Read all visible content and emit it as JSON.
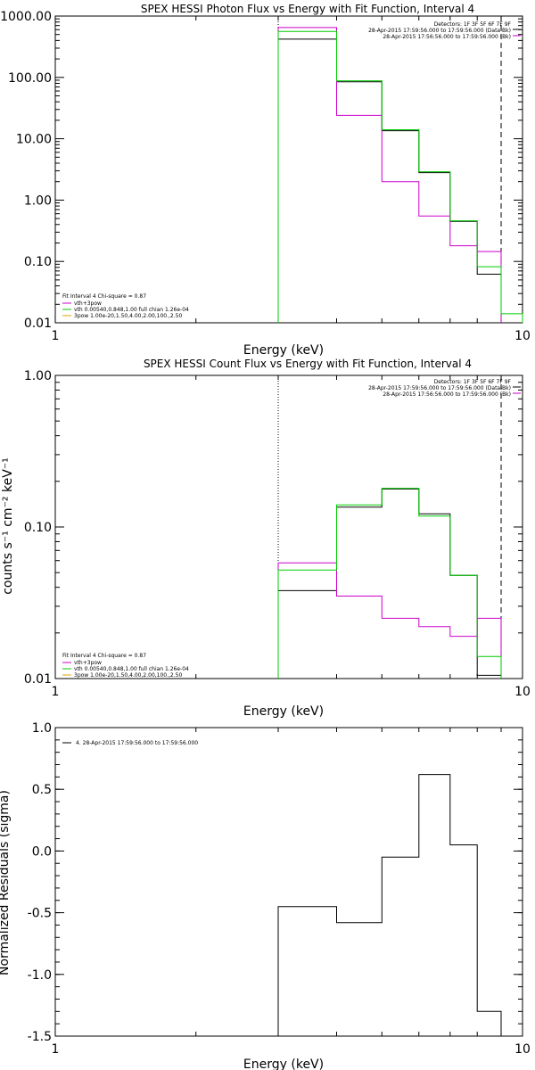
{
  "colors": {
    "black": "#000000",
    "magenta": "#cc00cc",
    "green": "#00cc00",
    "orange": "#e0a000"
  },
  "chart_data": [
    {
      "type": "line",
      "step": true,
      "title": "SPEX HESSI Photon Flux vs Energy with Fit Function, Interval 4",
      "xlabel": "Energy (keV)",
      "ylabel": "",
      "xscale": "log",
      "yscale": "log",
      "xlim": [
        1,
        10
      ],
      "ylim": [
        0.01,
        1000
      ],
      "xticks": [
        {
          "v": 1,
          "label": "1"
        },
        {
          "v": 10,
          "label": "10"
        }
      ],
      "yticks": [
        {
          "v": 0.01,
          "label": "0.01"
        },
        {
          "v": 0.1,
          "label": "0.10"
        },
        {
          "v": 1,
          "label": "1.00"
        },
        {
          "v": 10,
          "label": "10.00"
        },
        {
          "v": 100,
          "label": "100.00"
        },
        {
          "v": 1000,
          "label": "1000.00"
        }
      ],
      "vlines": [
        {
          "x": 3.0,
          "style": "dotted"
        },
        {
          "x": 9.0,
          "style": "dashed"
        }
      ],
      "edges": [
        3.0,
        4.0,
        5.0,
        6.0,
        7.0,
        8.0,
        9.0,
        10.0
      ],
      "series": [
        {
          "color": "#000000",
          "values": [
            420,
            85,
            13.5,
            2.8,
            0.45,
            0.062
          ]
        },
        {
          "color": "#cc00cc",
          "values": [
            650,
            24,
            2.0,
            0.55,
            0.18,
            0.145
          ]
        },
        {
          "color": "#00cc00",
          "values": [
            560,
            88,
            14,
            2.9,
            0.46,
            0.082,
            0.014
          ]
        }
      ],
      "info": {
        "lines": [
          {
            "text": "Detectors: 1F 3F 5F 6F 7F 9F",
            "color": "#000000"
          },
          {
            "text": "28-Apr-2015 17:59:56.000 to 17:59:56.000 (Data-Bk)",
            "color": "#000000"
          },
          {
            "text": "28-Apr-2015 17:56:56.000 to 17:59:56.000 (Bk)",
            "color": "#cc00cc"
          }
        ]
      },
      "legend": {
        "header": "Fit Interval 4   Chi-square = 0.87",
        "entries": [
          {
            "text": "vth+3pow",
            "color": "#cc00cc"
          },
          {
            "text": "vth 0.00540,0.848,1.00  full chian 1.26e-04",
            "color": "#00cc00"
          },
          {
            "text": "3pow 1.00e-20,1.50,4.00,2.00,100.,2.50",
            "color": "#e0a000"
          }
        ]
      }
    },
    {
      "type": "line",
      "step": true,
      "title": "SPEX HESSI Count Flux vs Energy with Fit Function, Interval 4",
      "xlabel": "Energy (keV)",
      "ylabel": "counts s⁻¹ cm⁻² keV⁻¹",
      "xscale": "log",
      "yscale": "log",
      "xlim": [
        1,
        10
      ],
      "ylim": [
        0.01,
        1.0
      ],
      "xticks": [
        {
          "v": 1,
          "label": "1"
        },
        {
          "v": 10,
          "label": "10"
        }
      ],
      "yticks": [
        {
          "v": 0.01,
          "label": "0.01"
        },
        {
          "v": 0.1,
          "label": "0.10"
        },
        {
          "v": 1,
          "label": "1.00"
        }
      ],
      "vlines": [
        {
          "x": 3.0,
          "style": "dotted"
        },
        {
          "x": 9.0,
          "style": "dashed"
        }
      ],
      "edges": [
        3.0,
        4.0,
        5.0,
        6.0,
        7.0,
        8.0,
        9.0
      ],
      "series": [
        {
          "color": "#000000",
          "values": [
            0.038,
            0.135,
            0.178,
            0.122,
            0.048,
            0.0105
          ]
        },
        {
          "color": "#cc00cc",
          "values": [
            0.058,
            0.035,
            0.025,
            0.022,
            0.019,
            0.025
          ]
        },
        {
          "color": "#00cc00",
          "values": [
            0.052,
            0.14,
            0.18,
            0.118,
            0.048,
            0.014
          ]
        }
      ],
      "info": {
        "lines": [
          {
            "text": "Detectors: 1F 3F 5F 6F 7F 9F",
            "color": "#000000"
          },
          {
            "text": "28-Apr-2015 17:59:56.000 to 17:59:56.000 (Data-Bk)",
            "color": "#000000"
          },
          {
            "text": "28-Apr-2015 17:56:56.000 to 17:59:56.000 (Bk)",
            "color": "#cc00cc"
          }
        ]
      },
      "legend": {
        "header": "Fit Interval 4   Chi-square = 0.87",
        "entries": [
          {
            "text": "vth+3pow",
            "color": "#cc00cc"
          },
          {
            "text": "vth 0.00540,0.848,1.00  full chian 1.26e-04",
            "color": "#00cc00"
          },
          {
            "text": "3pow 1.00e-20,1.50,4.00,2.00,100.,2.50",
            "color": "#e0a000"
          }
        ]
      }
    },
    {
      "type": "line",
      "step": true,
      "title": "",
      "xlabel": "Energy (keV)",
      "ylabel": "Normalized Residuals (sigma)",
      "xscale": "log",
      "yscale": "linear",
      "xlim": [
        1,
        10
      ],
      "ylim": [
        -1.5,
        1.0
      ],
      "xticks": [
        {
          "v": 1,
          "label": "1"
        },
        {
          "v": 10,
          "label": "10"
        }
      ],
      "yticks": [
        {
          "v": -1.5,
          "label": "-1.5"
        },
        {
          "v": -1.0,
          "label": "-1.0"
        },
        {
          "v": -0.5,
          "label": "-0.5"
        },
        {
          "v": 0.0,
          "label": "0.0"
        },
        {
          "v": 0.5,
          "label": "0.5"
        },
        {
          "v": 1.0,
          "label": "1.0"
        }
      ],
      "vlines": [],
      "edges": [
        3.0,
        4.0,
        5.0,
        6.0,
        7.0,
        8.0,
        9.0
      ],
      "series": [
        {
          "color": "#000000",
          "values": [
            -0.45,
            -0.58,
            -0.05,
            0.62,
            0.05,
            -1.3
          ]
        }
      ],
      "legend": {
        "header": "",
        "entries": [
          {
            "text": "4. 28-Apr-2015 17:59:56.000 to 17:59:56.000",
            "color": "#000000"
          }
        ]
      }
    }
  ]
}
